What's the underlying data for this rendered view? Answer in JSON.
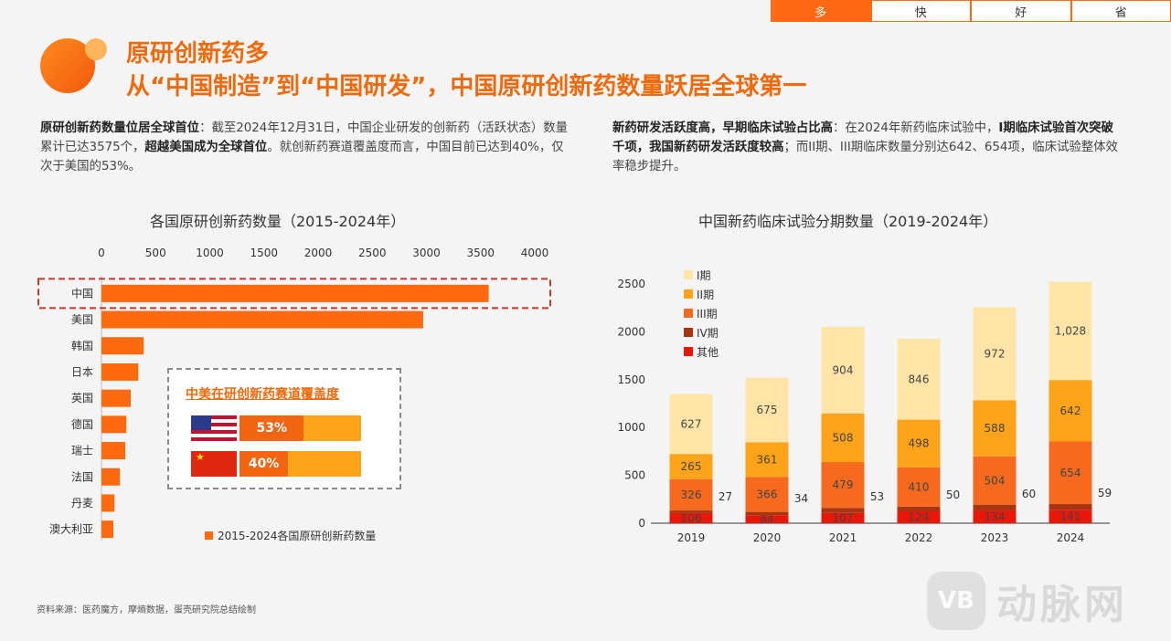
{
  "tabs": [
    "多",
    "快",
    "好",
    "省"
  ],
  "header": {
    "title": "原研创新药多",
    "subtitle": "从“中国制造”到“中国研发”，中国原研创新药数量跃居全球第一"
  },
  "left_text": {
    "bold1": "原研创新药数量位居全球首位",
    "text1": "：截至2024年12月31日，中国企业研发的创新药（活跃状态）数量累计已达3575个，",
    "bold2": "超越美国成为全球首位",
    "text2": "。就创新药赛道覆盖度而言，中国目前已达到40%，仅次于美国的53%。"
  },
  "right_text": {
    "bold1": "新药研发活跃度高，早期临床试验占比高",
    "text1": "：在2024年新药临床试验中，",
    "bold2": "I期临床试验首次突破千项，我国新药研发活跃度较高",
    "text2": "；而II期、III期临床数量分别达642、654项，临床试验整体效率稳步提升。"
  },
  "chart_data": [
    {
      "type": "bar",
      "orientation": "horizontal",
      "title": "各国原研创新药数量（2015-2024年）",
      "categories": [
        "中国",
        "美国",
        "韩国",
        "日本",
        "英国",
        "德国",
        "瑞士",
        "法国",
        "丹麦",
        "澳大利亚"
      ],
      "values": [
        3575,
        2970,
        390,
        340,
        270,
        230,
        220,
        170,
        120,
        110
      ],
      "xlim": [
        0,
        4000
      ],
      "ticks": [
        "0",
        "500",
        "1000",
        "1500",
        "2000",
        "2500",
        "3000",
        "3500",
        "4000"
      ],
      "legend": "2015-2024各国原研创新药数量",
      "highlight": "中国",
      "color": "#ff6a0f"
    },
    {
      "type": "bar",
      "stacked": true,
      "title": "中国新药临床试验分期数量（2019-2024年）",
      "categories": [
        "2019",
        "2020",
        "2021",
        "2022",
        "2023",
        "2024"
      ],
      "ylim": [
        0,
        2500
      ],
      "yticks": [
        "0",
        "500",
        "1000",
        "1500",
        "2000",
        "2500"
      ],
      "series": [
        {
          "name": "其他",
          "color": "#e8170a",
          "values": [
            106,
            84,
            107,
            124,
            134,
            141
          ],
          "labels": [
            "106",
            "84",
            "107",
            "124",
            "134",
            "141"
          ]
        },
        {
          "name": "IV期",
          "color": "#a8350f",
          "values": [
            27,
            34,
            53,
            50,
            60,
            59
          ],
          "labels": [
            "27",
            "34",
            "53",
            "50",
            "60",
            "59"
          ]
        },
        {
          "name": "III期",
          "color": "#f56a1f",
          "values": [
            326,
            366,
            479,
            410,
            504,
            654
          ],
          "labels": [
            "326",
            "366",
            "479",
            "410",
            "504",
            "654"
          ]
        },
        {
          "name": "II期",
          "color": "#ffa31a",
          "values": [
            265,
            361,
            508,
            498,
            588,
            642
          ],
          "labels": [
            "265",
            "361",
            "508",
            "498",
            "588",
            "642"
          ]
        },
        {
          "name": "I期",
          "color": "#ffe4a8",
          "values": [
            627,
            675,
            904,
            846,
            972,
            1028
          ],
          "labels": [
            "627",
            "675",
            "904",
            "846",
            "972",
            "1,028"
          ]
        }
      ],
      "legend_order": [
        "I期",
        "II期",
        "III期",
        "IV期",
        "其他"
      ],
      "legend_position": "top-left"
    }
  ],
  "inset": {
    "title": "中美在研创新药赛道覆盖度",
    "rows": [
      {
        "country": "us",
        "label": "53%",
        "value": 53
      },
      {
        "country": "cn",
        "label": "40%",
        "value": 40
      }
    ]
  },
  "source": "资料来源：医药魔方，摩熵数据，蛋壳研究院总结绘制",
  "watermark": {
    "badge": "VB",
    "text": "动脉网"
  },
  "colors": {
    "accent": "#f06a0b",
    "dashed_highlight": "#c0392b"
  }
}
